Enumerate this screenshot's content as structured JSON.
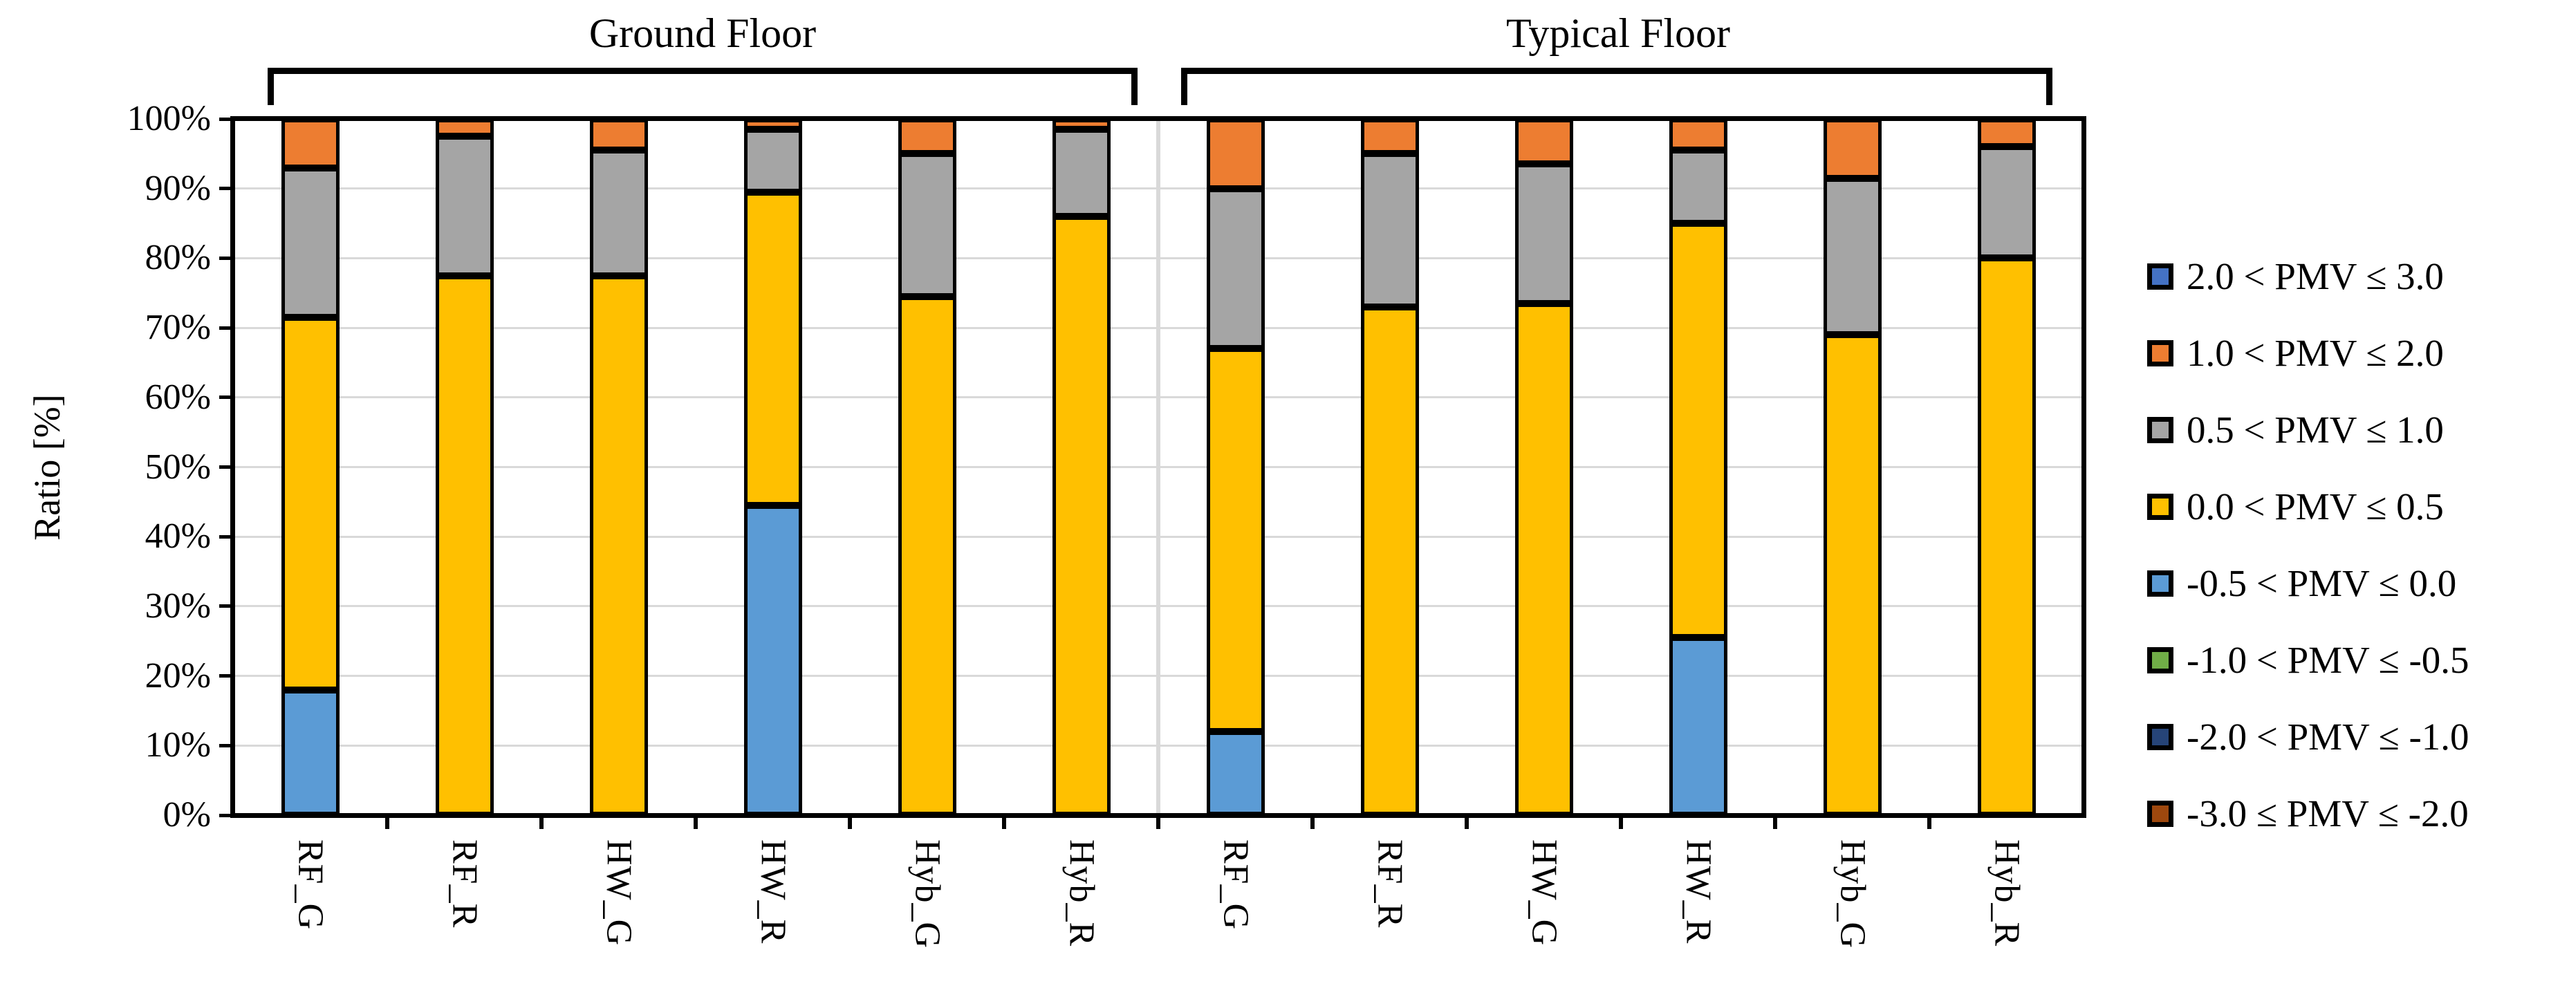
{
  "chart_data": {
    "type": "bar",
    "subtype": "stacked-100-percent",
    "ylabel": "Ratio [%]",
    "ylim": [
      0,
      100
    ],
    "grid": "horizontal",
    "legend_position": "right",
    "ytick_labels": [
      "100%",
      "90%",
      "80%",
      "70%",
      "60%",
      "50%",
      "40%",
      "30%",
      "20%",
      "10%",
      "0%"
    ],
    "groups": [
      {
        "label": "Ground Floor",
        "categories": [
          "RF_G",
          "RF_R",
          "HW_G",
          "HW_R",
          "Hyb_G",
          "Hyb_R"
        ]
      },
      {
        "label": "Typical Floor",
        "categories": [
          "RF_G",
          "RF_R",
          "HW_G",
          "HW_R",
          "Hyb_G",
          "Hyb_R"
        ]
      }
    ],
    "categories_all": [
      "RF_G",
      "RF_R",
      "HW_G",
      "HW_R",
      "Hyb_G",
      "Hyb_R",
      "RF_G",
      "RF_R",
      "HW_G",
      "HW_R",
      "Hyb_G",
      "Hyb_R"
    ],
    "series_bottom_to_top": [
      {
        "name": "-0.5 < PMV ≤ 0.0",
        "color": "#5B9BD5",
        "values": [
          18,
          0,
          0,
          44.5,
          0,
          0,
          12,
          0,
          0,
          25.5,
          0,
          0
        ]
      },
      {
        "name": "0.0 < PMV ≤ 0.5",
        "color": "#FFC000",
        "values": [
          53.5,
          77.5,
          77.5,
          45,
          74.5,
          86,
          55,
          73,
          73.5,
          59.5,
          69,
          80
        ]
      },
      {
        "name": "0.5 < PMV ≤ 1.0",
        "color": "#A5A5A5",
        "values": [
          21.5,
          20,
          18,
          9,
          20.5,
          12.5,
          23,
          22,
          20,
          10.5,
          22.5,
          16
        ]
      },
      {
        "name": "1.0 < PMV ≤ 2.0",
        "color": "#ED7D31",
        "values": [
          7,
          2.5,
          4.5,
          1.5,
          5,
          1.5,
          10,
          5,
          6.5,
          4.5,
          8.5,
          4
        ]
      }
    ],
    "legend": [
      {
        "label": "2.0 < PMV ≤ 3.0",
        "color": "#4472C4"
      },
      {
        "label": "1.0 < PMV ≤ 2.0",
        "color": "#ED7D31"
      },
      {
        "label": "0.5 < PMV ≤ 1.0",
        "color": "#A5A5A5"
      },
      {
        "label": "0.0 < PMV ≤ 0.5",
        "color": "#FFC000"
      },
      {
        "label": "-0.5 < PMV ≤ 0.0",
        "color": "#5B9BD5"
      },
      {
        "label": "-1.0 < PMV ≤ -0.5",
        "color": "#70AD47"
      },
      {
        "label": "-2.0 < PMV ≤ -1.0",
        "color": "#264478"
      },
      {
        "label": "-3.0 ≤ PMV ≤ -2.0",
        "color": "#9E480E"
      }
    ]
  }
}
